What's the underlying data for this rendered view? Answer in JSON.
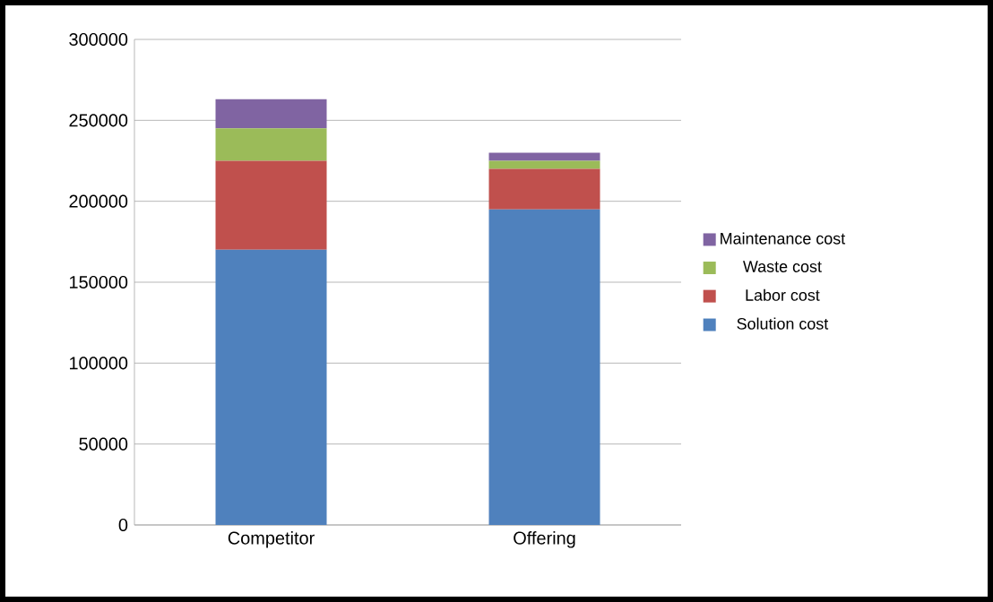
{
  "chart_data": {
    "type": "bar",
    "stacked": true,
    "categories": [
      "Competitor",
      "Offering"
    ],
    "series": [
      {
        "name": "Solution cost",
        "color": "#4f81bd",
        "values": [
          170000,
          195000
        ]
      },
      {
        "name": "Labor cost",
        "color": "#c0504d",
        "values": [
          55000,
          25000
        ]
      },
      {
        "name": "Waste cost",
        "color": "#9bbb59",
        "values": [
          20000,
          5000
        ]
      },
      {
        "name": "Maintenance cost",
        "color": "#8064a2",
        "values": [
          18000,
          5000
        ]
      }
    ],
    "ylim": [
      0,
      300000
    ],
    "yticks": [
      0,
      50000,
      100000,
      150000,
      200000,
      250000,
      300000
    ],
    "grid": "y",
    "legend": "right"
  }
}
